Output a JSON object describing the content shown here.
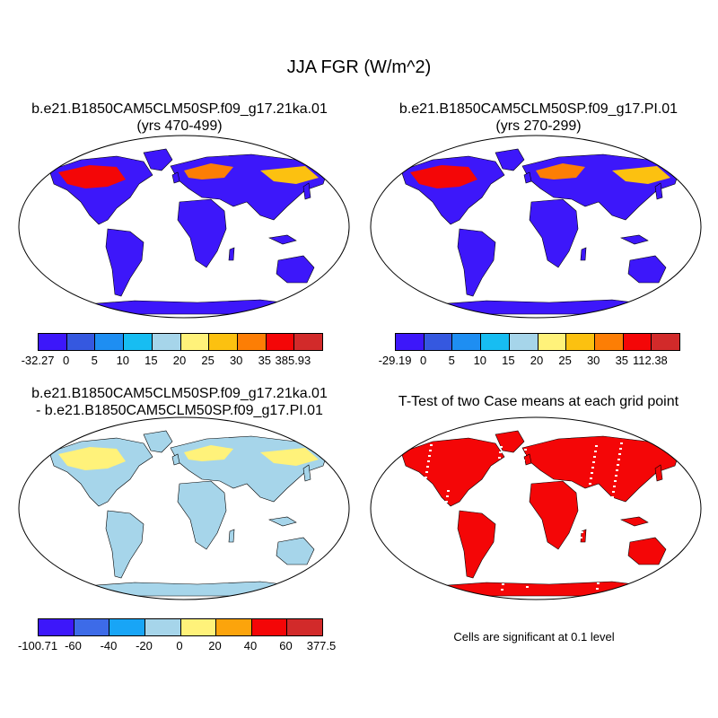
{
  "figure": {
    "title": "JJA FGR (W/m^2)",
    "panels": [
      {
        "id": "case1",
        "title_line1": "b.e21.B1850CAM5CLM50SP.f09_g17.21ka.01",
        "title_line2": "(yrs 470-499)",
        "colorbar": {
          "colors": [
            "#3d17fa",
            "#3558e0",
            "#1e8ef2",
            "#17bdf2",
            "#a6d5ea",
            "#fff27a",
            "#fcc110",
            "#fd7e05",
            "#f40607",
            "#d22a2a"
          ],
          "tick_labels": [
            "-32.27",
            "0",
            "5",
            "10",
            "15",
            "20",
            "25",
            "30",
            "35",
            "385.93"
          ]
        }
      },
      {
        "id": "case2",
        "title_line1": "b.e21.B1850CAM5CLM50SP.f09_g17.PI.01",
        "title_line2": "(yrs 270-299)",
        "colorbar": {
          "colors": [
            "#3d17fa",
            "#3558e0",
            "#1e8ef2",
            "#17bdf2",
            "#a6d5ea",
            "#fff27a",
            "#fcc110",
            "#fd7e05",
            "#f40607",
            "#d22a2a"
          ],
          "tick_labels": [
            "-29.19",
            "0",
            "5",
            "10",
            "15",
            "20",
            "25",
            "30",
            "35",
            "112.38"
          ]
        }
      },
      {
        "id": "diff",
        "title_line1": "b.e21.B1850CAM5CLM50SP.f09_g17.21ka.01",
        "title_line2": "- b.e21.B1850CAM5CLM50SP.f09_g17.PI.01",
        "colorbar": {
          "colors": [
            "#3d17fa",
            "#3d6be8",
            "#18a5f6",
            "#a6d5ea",
            "#fff27a",
            "#fca40c",
            "#f40607",
            "#d22a2a"
          ],
          "tick_labels": [
            "-100.71",
            "-60",
            "-40",
            "-20",
            "0",
            "20",
            "40",
            "60",
            "377.5"
          ]
        }
      },
      {
        "id": "ttest",
        "title_line1": "T-Test of two Case means at each grid point",
        "note": "Cells are significant at 0.1 level"
      }
    ]
  },
  "colors": {
    "land_case": "#3d17fa",
    "land_diff": "#a6d5ea",
    "land_ttest": "#f40607"
  }
}
